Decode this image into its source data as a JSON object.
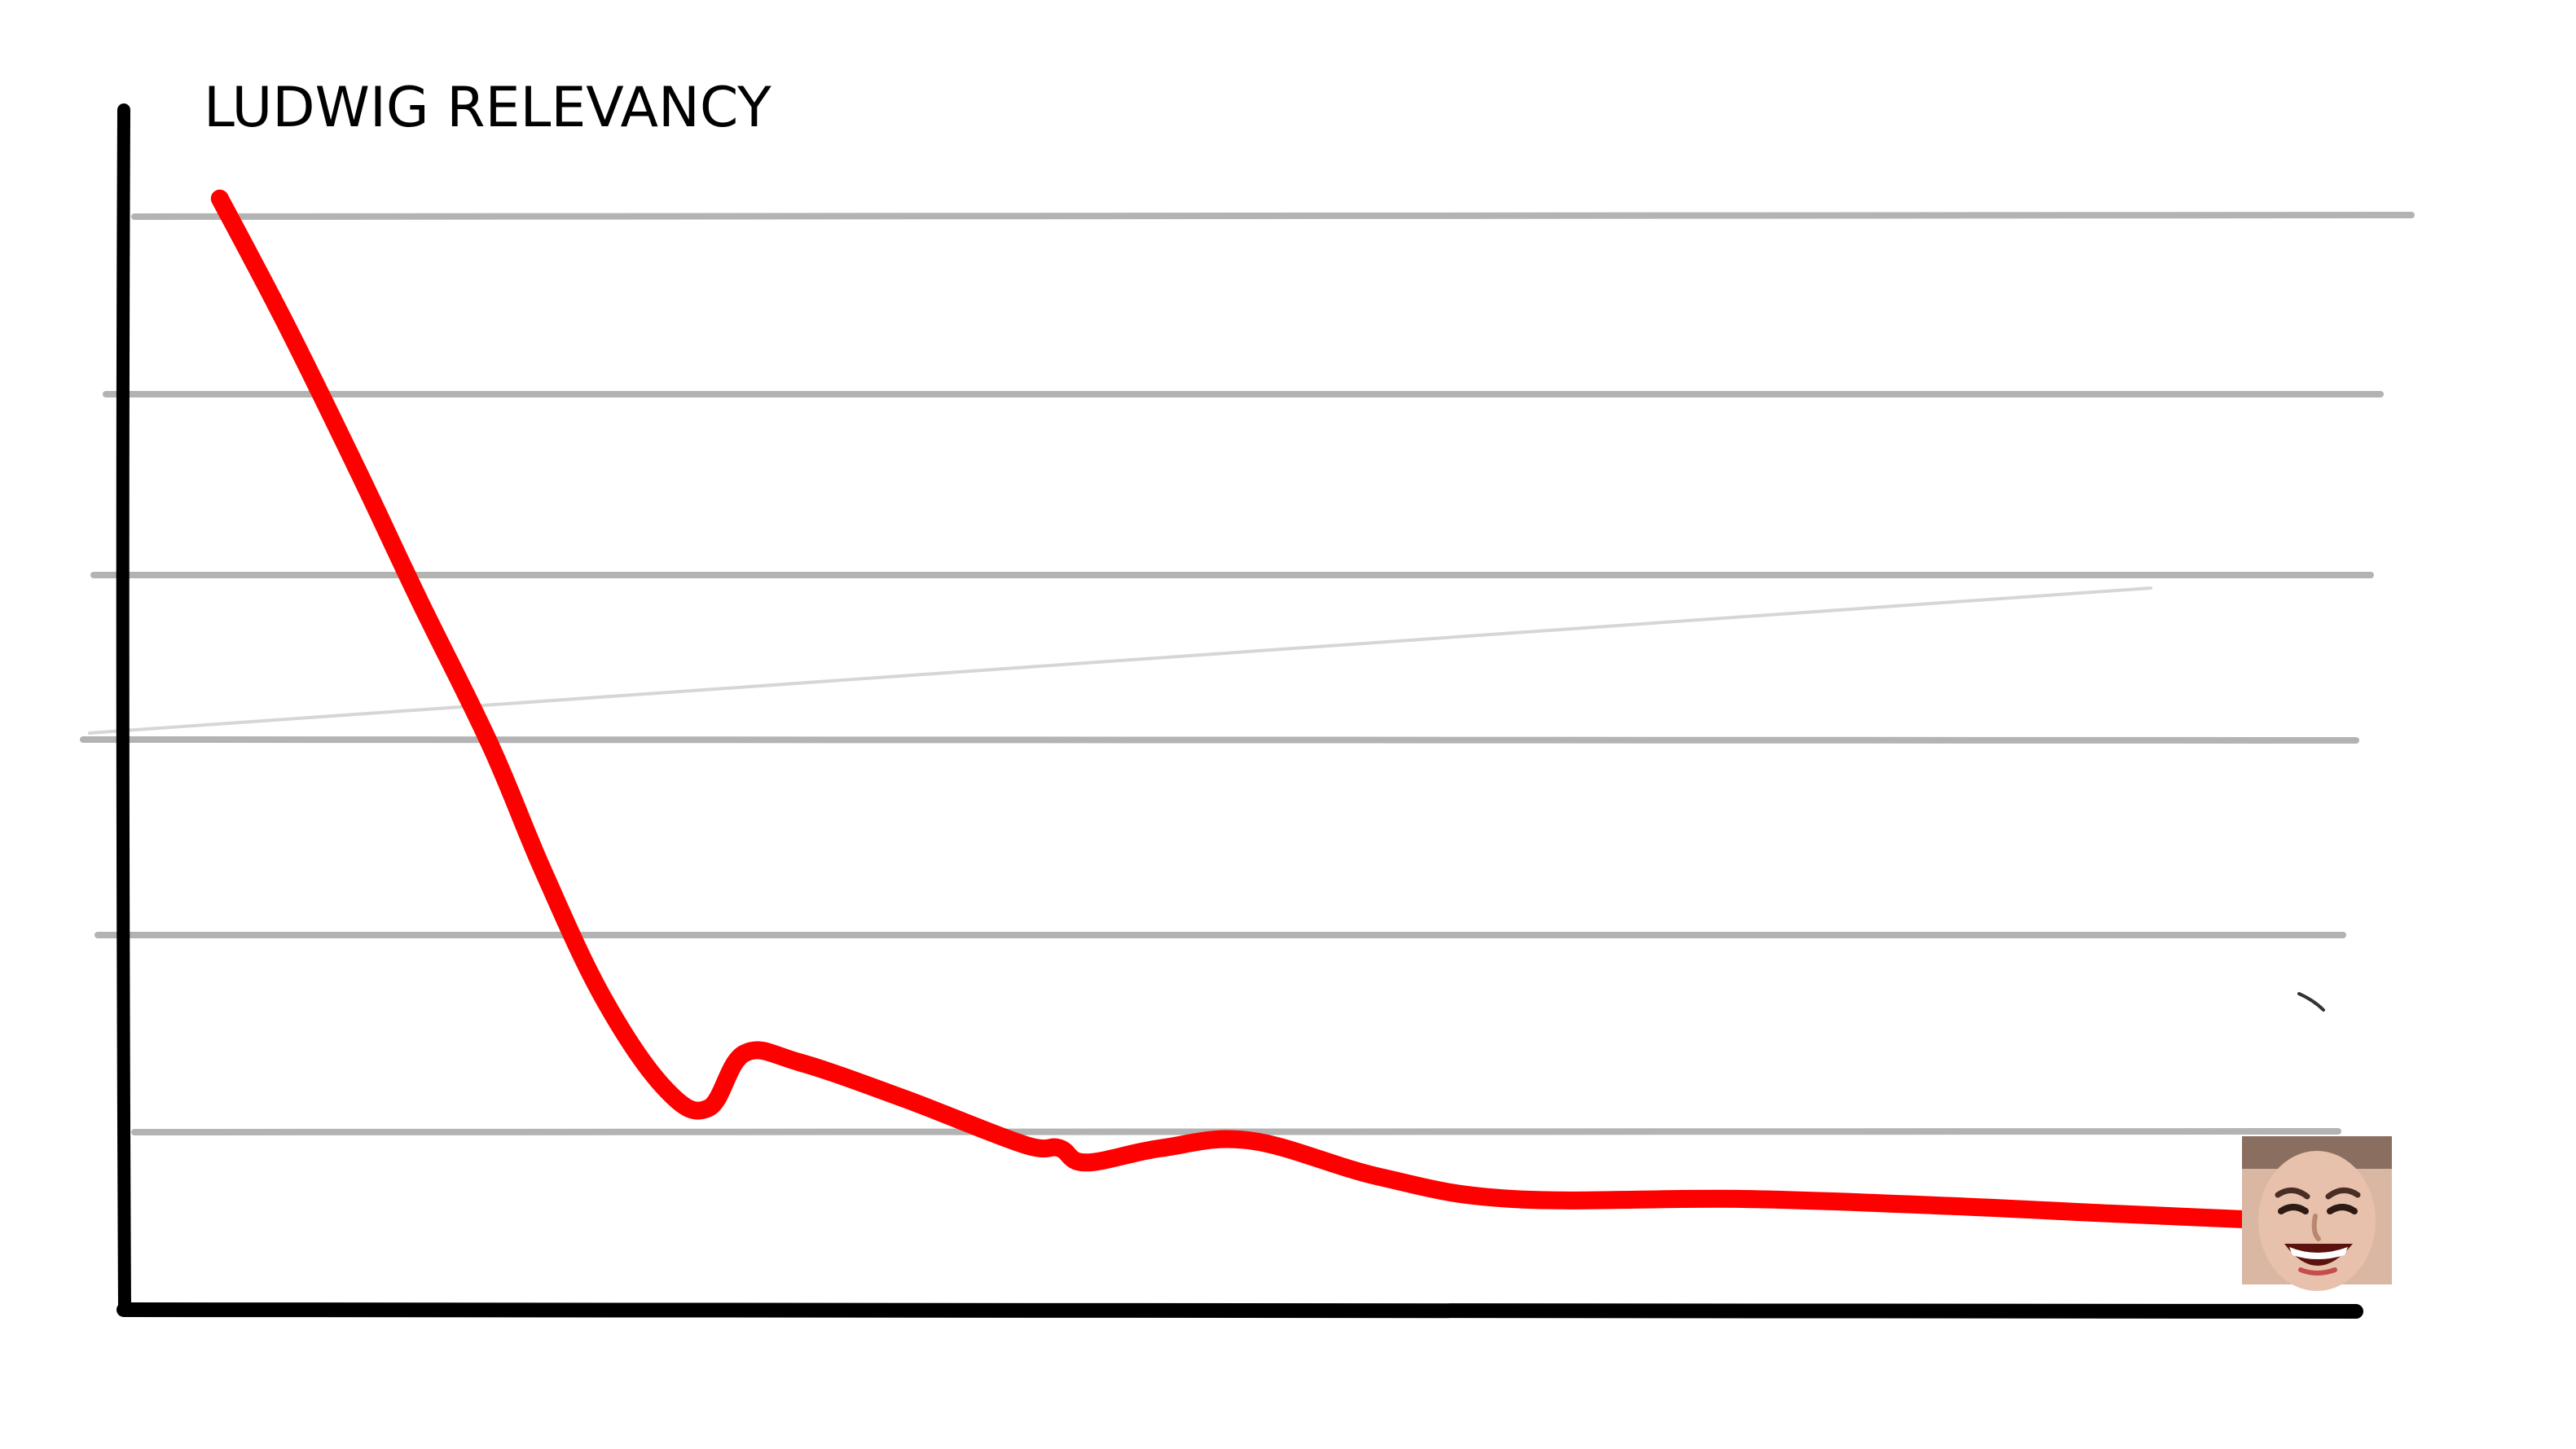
{
  "chart_data": {
    "type": "line",
    "title": "LUDWIG RELEVANCY",
    "xlabel": "",
    "ylabel": "",
    "x_ticks_shown": false,
    "y_ticks_shown": false,
    "grid": true,
    "gridline_count": 6,
    "xlim": [
      0,
      100
    ],
    "ylim": [
      0,
      6
    ],
    "series": [
      {
        "color": "#ff0000",
        "points": [
          [
            4.3,
            6.1
          ],
          [
            7.3,
            5.4
          ],
          [
            10.5,
            4.6
          ],
          [
            13.2,
            3.9
          ],
          [
            16.4,
            3.1
          ],
          [
            18.8,
            2.4
          ],
          [
            21.5,
            1.7
          ],
          [
            24.3,
            1.2
          ],
          [
            26.2,
            1.1
          ],
          [
            27.8,
            1.4
          ],
          [
            30.3,
            1.35
          ],
          [
            35.0,
            1.15
          ],
          [
            40.3,
            0.9
          ],
          [
            41.9,
            0.88
          ],
          [
            43.1,
            0.8
          ],
          [
            46.5,
            0.88
          ],
          [
            50.5,
            0.92
          ],
          [
            56.3,
            0.72
          ],
          [
            62.2,
            0.6
          ],
          [
            72.5,
            0.6
          ],
          [
            82.0,
            0.56
          ],
          [
            89.0,
            0.52
          ],
          [
            96.5,
            0.48
          ]
        ]
      }
    ],
    "line_end_marker": "laughing-face-icon",
    "axis_color": "#000000",
    "grid_color": "#b3b3b3"
  }
}
